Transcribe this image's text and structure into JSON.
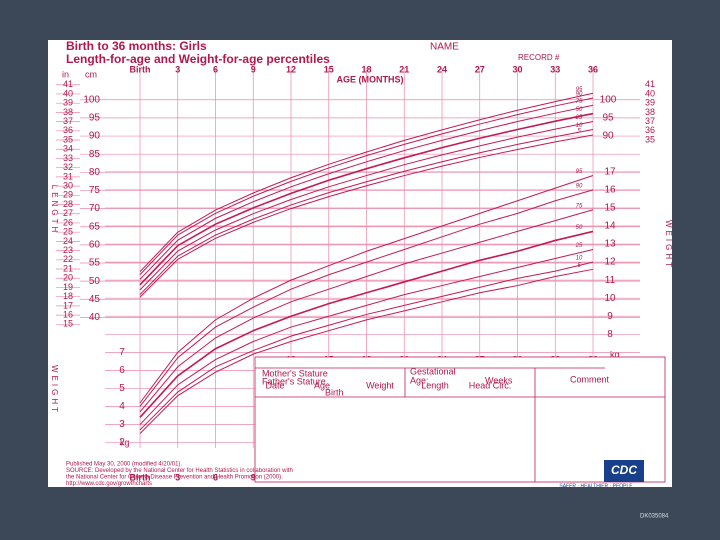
{
  "chart_data": {
    "type": "line",
    "title": "Birth to 36 months: Girls",
    "subtitle": "Length-for-age and Weight-for-age percentiles",
    "name_label": "NAME",
    "record_label": "RECORD #",
    "xlabel": "AGE (MONTHS)",
    "ylabel": "LENGTH",
    "y2label": "WEIGHT",
    "y_unit": "cm",
    "y2_unit": "kg",
    "inch_unit": "in",
    "x": [
      0,
      3,
      6,
      9,
      12,
      15,
      18,
      21,
      24,
      27,
      30,
      33,
      36
    ],
    "xlim": [
      0,
      36
    ],
    "xticks": [
      {
        "value": 0,
        "label": "Birth"
      },
      3,
      6,
      9,
      12,
      15,
      18,
      21,
      24,
      27,
      30,
      33,
      36
    ],
    "ylim": [
      4,
      106
    ],
    "yticks": [
      40,
      45,
      50,
      55,
      60,
      65,
      70,
      75,
      80,
      85,
      90,
      95,
      100
    ],
    "y2lim": [
      1.7,
      22.2
    ],
    "y2ticks": [
      2,
      3,
      4,
      5,
      6,
      7,
      8,
      9,
      10,
      11,
      12,
      13,
      14,
      15,
      16,
      17
    ],
    "inch_ticks": [
      15,
      16,
      17,
      18,
      19,
      20,
      21,
      22,
      23,
      24,
      25,
      26,
      27,
      28,
      29,
      30,
      31,
      32,
      33,
      34,
      35,
      36,
      37,
      38,
      39,
      40,
      41
    ],
    "grid": true,
    "series": [
      {
        "name": "95",
        "color": "#c41a55",
        "values": [
          52.6,
          63.5,
          69.6,
          74.3,
          78.5,
          82.2,
          85.6,
          88.8,
          91.7,
          94.5,
          97.1,
          99.5,
          101.8
        ]
      },
      {
        "name": "90",
        "color": "#c41a55",
        "values": [
          51.8,
          62.7,
          68.7,
          73.4,
          77.5,
          81.2,
          84.6,
          87.7,
          90.6,
          93.3,
          95.9,
          98.3,
          100.5
        ]
      },
      {
        "name": "75",
        "color": "#c41a55",
        "values": [
          50.5,
          61.3,
          67.3,
          71.9,
          76.0,
          79.6,
          82.9,
          86.0,
          88.8,
          91.5,
          94.0,
          96.3,
          98.5
        ]
      },
      {
        "name": "50",
        "color": "#c41a55",
        "values": [
          49.0,
          59.8,
          65.7,
          70.2,
          74.2,
          77.8,
          81.0,
          84.0,
          86.8,
          89.4,
          91.8,
          94.1,
          96.2
        ]
      },
      {
        "name": "25",
        "color": "#c41a55",
        "values": [
          47.6,
          58.3,
          64.1,
          68.6,
          72.5,
          76.0,
          79.1,
          82.1,
          84.8,
          87.3,
          89.7,
          91.9,
          94.0
        ]
      },
      {
        "name": "10",
        "color": "#c41a55",
        "values": [
          46.3,
          56.9,
          62.7,
          67.1,
          71.0,
          74.4,
          77.4,
          80.3,
          82.9,
          85.4,
          87.7,
          89.8,
          91.8
        ]
      },
      {
        "name": "5",
        "color": "#c41a55",
        "values": [
          45.6,
          56.0,
          61.8,
          66.2,
          70.0,
          73.3,
          76.3,
          79.1,
          81.7,
          84.1,
          86.3,
          88.4,
          90.3
        ]
      },
      {
        "name": "95",
        "color": "#c41a55",
        "axis": "y2",
        "values": [
          4.2,
          7.0,
          8.8,
          10.0,
          11.0,
          11.8,
          12.6,
          13.3,
          14.0,
          14.7,
          15.4,
          16.1,
          16.8
        ]
      },
      {
        "name": "90",
        "color": "#c41a55",
        "axis": "y2",
        "values": [
          4.0,
          6.7,
          8.4,
          9.5,
          10.5,
          11.3,
          12.0,
          12.7,
          13.4,
          14.1,
          14.7,
          15.4,
          16.0
        ]
      },
      {
        "name": "75",
        "color": "#c41a55",
        "axis": "y2",
        "values": [
          3.7,
          6.2,
          7.8,
          8.9,
          9.8,
          10.5,
          11.2,
          11.9,
          12.5,
          13.1,
          13.7,
          14.3,
          14.9
        ]
      },
      {
        "name": "50",
        "color": "#c41a55",
        "axis": "y2",
        "values": [
          3.4,
          5.7,
          7.2,
          8.2,
          9.0,
          9.7,
          10.3,
          10.9,
          11.5,
          12.1,
          12.6,
          13.2,
          13.7
        ]
      },
      {
        "name": "25",
        "color": "#c41a55",
        "axis": "y2",
        "values": [
          3.0,
          5.2,
          6.6,
          7.6,
          8.4,
          9.0,
          9.6,
          10.2,
          10.7,
          11.2,
          11.7,
          12.2,
          12.7
        ]
      },
      {
        "name": "10",
        "color": "#c41a55",
        "axis": "y2",
        "values": [
          2.7,
          4.8,
          6.2,
          7.1,
          7.9,
          8.5,
          9.1,
          9.6,
          10.1,
          10.6,
          11.1,
          11.5,
          12.0
        ]
      },
      {
        "name": "5",
        "color": "#c41a55",
        "axis": "y2",
        "values": [
          2.5,
          4.6,
          5.9,
          6.9,
          7.6,
          8.2,
          8.8,
          9.3,
          9.8,
          10.3,
          10.7,
          11.2,
          11.6
        ]
      }
    ],
    "table": {
      "mother": "Mother's Stature",
      "father": "Father's Stature",
      "gestational": "Gestational",
      "age_label": "Age:",
      "weeks": "Weeks",
      "comment": "Comment",
      "columns": [
        "Date",
        "Age",
        "Weight",
        "Length",
        "Head Circ."
      ],
      "birth": "Birth"
    },
    "footer": [
      "Published May 30, 2000 (modified 4/20/01).",
      "SOURCE: Developed by the National Center for Health Statistics in collaboration with",
      "the National Center for Chronic Disease Prevention and Health Promotion (2000).",
      "http://www.cdc.gov/growthcharts"
    ],
    "logo": "CDC",
    "logo_tagline": "SAFER · HEALTHIER · PEOPLE",
    "slide_code": "DK035084"
  }
}
